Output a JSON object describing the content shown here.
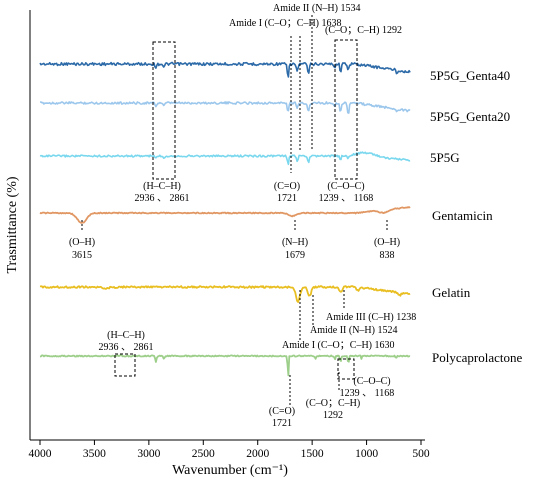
{
  "chart_data": {
    "type": "line",
    "xlabel": "Wavenumber (cm⁻¹)",
    "ylabel": "Trasmittance (%)",
    "xlim": [
      4000,
      500
    ],
    "x_reversed": true,
    "x_ticks": [
      4000,
      3500,
      3000,
      2500,
      2000,
      1500,
      1000,
      500
    ],
    "grid": false,
    "legend": "none",
    "series": [
      {
        "name": "5P5G_Genta40",
        "color": "#2c6aa8",
        "bands": [
          2936,
          2861,
          1721,
          1638,
          1534,
          1292,
          1239,
          1168
        ]
      },
      {
        "name": "5P5G_Genta20",
        "color": "#9cc7ec",
        "bands": [
          2936,
          2861,
          1721,
          1638,
          1534,
          1292,
          1239,
          1168
        ]
      },
      {
        "name": "5P5G",
        "color": "#79d7ee",
        "bands": [
          2936,
          2861,
          1721,
          1638,
          1534,
          1239,
          1168
        ]
      },
      {
        "name": "Gentamicin",
        "color": "#e19763",
        "bands": [
          3615,
          1679,
          838
        ]
      },
      {
        "name": "Gelatin",
        "color": "#e8be21",
        "bands": [
          1630,
          1524,
          1238
        ]
      },
      {
        "name": "Polycaprolactone",
        "color": "#9dcf8a",
        "bands": [
          2936,
          2861,
          1721,
          1292,
          1239,
          1168
        ]
      }
    ],
    "annotations": {
      "amide2_top": "Amide II (N–H) 1534",
      "amide1_top": "Amide I (C–O；C–H) 1638",
      "co_ch_top": "(C–O；C–H) 1292",
      "hch_top_1": "(H–C–H)",
      "hch_top_2": "2936 、 2861",
      "co_top_1": "(C=O)",
      "co_top_2": "1721",
      "coc_top_1": "(C–O–C)",
      "coc_top_2": "1239 、 1168",
      "oh_left_1": "(O–H)",
      "oh_left_2": "3615",
      "nh_mid_1": "(N–H)",
      "nh_mid_2": "1679",
      "oh_right_1": "(O–H)",
      "oh_right_2": "838",
      "amide3_gel": "Amide III (C–H) 1238",
      "amide2_gel": "Amide II (N–H) 1524",
      "amide1_gel": "Amide I (C–O；C–H) 1630",
      "hch_bot_1": "(H–C–H)",
      "hch_bot_2": "2936 、 2861",
      "coc_bot_1": "(C–O–C)",
      "coc_bot_2": "1239 、 1168",
      "coch_bot_1": "(C–O；C–H)",
      "coch_bot_2": "1292",
      "co_bot_1": "(C=O)",
      "co_bot_2": "1721"
    }
  }
}
